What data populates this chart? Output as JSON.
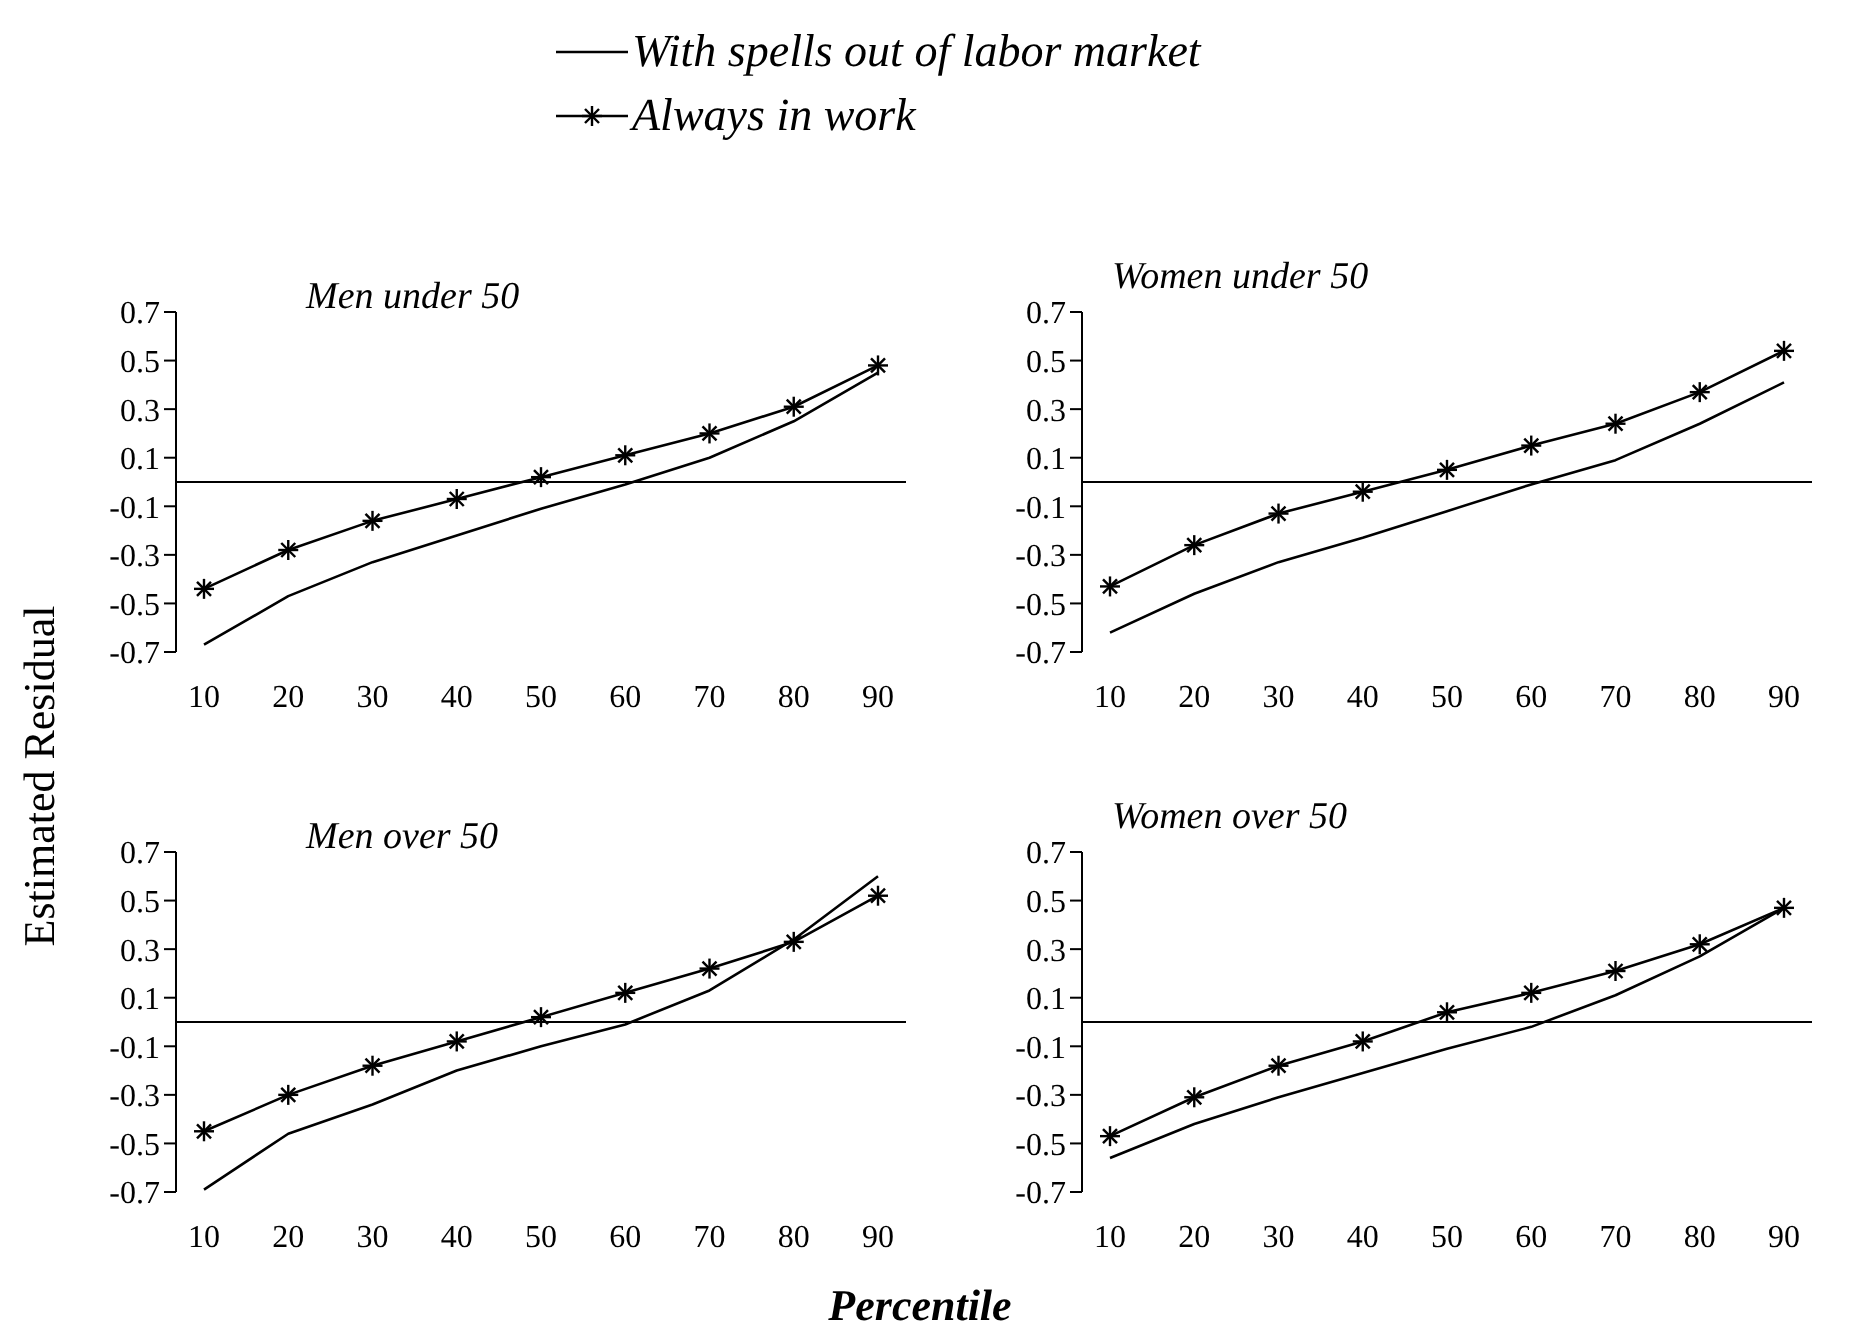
{
  "chart_data": [
    {
      "type": "line",
      "title": "Men under 50",
      "ylabel": "Estimated Residual",
      "categories": [
        "10",
        "20",
        "30",
        "40",
        "50",
        "60",
        "70",
        "80",
        "90"
      ],
      "ylim": [
        -0.7,
        0.7
      ],
      "yticks": [
        -0.7,
        -0.5,
        -0.3,
        -0.1,
        0.1,
        0.3,
        0.5,
        0.7
      ],
      "legend": "top",
      "grid": false,
      "line_style": "solid",
      "series": [
        {
          "name": "With spells out of labor market",
          "color": "#000000",
          "marker": "none",
          "values": [
            -0.67,
            -0.47,
            -0.33,
            -0.22,
            -0.11,
            -0.01,
            0.1,
            0.25,
            0.45
          ]
        },
        {
          "name": "Always in work",
          "color": "#000000",
          "marker": "cross",
          "values": [
            -0.44,
            -0.28,
            -0.16,
            -0.07,
            0.02,
            0.11,
            0.2,
            0.31,
            0.48
          ]
        }
      ]
    },
    {
      "type": "line",
      "title": "Women under 50",
      "categories": [
        "10",
        "20",
        "30",
        "40",
        "50",
        "60",
        "70",
        "80",
        "90"
      ],
      "ylim": [
        -0.7,
        0.7
      ],
      "yticks": [
        -0.7,
        -0.5,
        -0.3,
        -0.1,
        0.1,
        0.3,
        0.5,
        0.7
      ],
      "grid": false,
      "line_style": "solid",
      "series": [
        {
          "color": "#000000",
          "marker": "none",
          "values": [
            -0.62,
            -0.46,
            -0.33,
            -0.23,
            -0.12,
            -0.01,
            0.09,
            0.24,
            0.41
          ]
        },
        {
          "color": "#000000",
          "marker": "cross",
          "values": [
            -0.43,
            -0.26,
            -0.13,
            -0.04,
            0.05,
            0.15,
            0.24,
            0.37,
            0.54
          ]
        }
      ]
    },
    {
      "type": "line",
      "title": "Men over 50",
      "xlabel": "Percentile",
      "categories": [
        "10",
        "20",
        "30",
        "40",
        "50",
        "60",
        "70",
        "80",
        "90"
      ],
      "ylim": [
        -0.7,
        0.7
      ],
      "yticks": [
        -0.7,
        -0.5,
        -0.3,
        -0.1,
        0.1,
        0.3,
        0.5,
        0.7
      ],
      "grid": false,
      "line_style": "solid",
      "series": [
        {
          "color": "#000000",
          "marker": "none",
          "values": [
            -0.69,
            -0.46,
            -0.34,
            -0.2,
            -0.1,
            -0.01,
            0.13,
            0.34,
            0.6
          ]
        },
        {
          "color": "#000000",
          "marker": "cross",
          "values": [
            -0.45,
            -0.3,
            -0.18,
            -0.08,
            0.02,
            0.12,
            0.22,
            0.33,
            0.52
          ]
        }
      ]
    },
    {
      "type": "line",
      "title": "Women over 50",
      "categories": [
        "10",
        "20",
        "30",
        "40",
        "50",
        "60",
        "70",
        "80",
        "90"
      ],
      "ylim": [
        -0.7,
        0.7
      ],
      "yticks": [
        -0.7,
        -0.5,
        -0.3,
        -0.1,
        0.1,
        0.3,
        0.5,
        0.7
      ],
      "grid": false,
      "line_style": "solid",
      "series": [
        {
          "color": "#000000",
          "marker": "none",
          "values": [
            -0.56,
            -0.42,
            -0.31,
            -0.21,
            -0.11,
            -0.02,
            0.11,
            0.27,
            0.47
          ]
        },
        {
          "color": "#000000",
          "marker": "cross",
          "values": [
            -0.47,
            -0.31,
            -0.18,
            -0.08,
            0.04,
            0.12,
            0.21,
            0.32,
            0.47
          ]
        }
      ]
    }
  ]
}
